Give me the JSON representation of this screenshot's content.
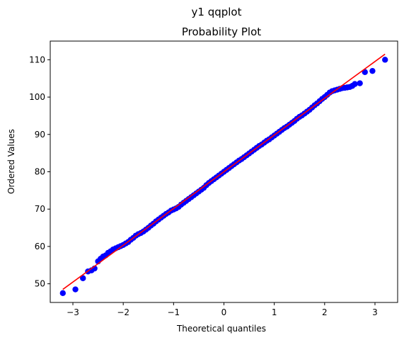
{
  "figure": {
    "suptitle": "y1 qqplot"
  },
  "chart_data": {
    "type": "scatter",
    "title": "Probability Plot",
    "xlabel": "Theoretical quantiles",
    "ylabel": "Ordered Values",
    "xlim": [
      -3.45,
      3.45
    ],
    "ylim": [
      45.0,
      115.0
    ],
    "xticks": [
      -3,
      -2,
      -1,
      0,
      1,
      2,
      3
    ],
    "xtick_labels": [
      "−3",
      "−2",
      "−1",
      "0",
      "1",
      "2",
      "3"
    ],
    "yticks": [
      50,
      60,
      70,
      80,
      90,
      100,
      110
    ],
    "ytick_labels": [
      "50",
      "60",
      "70",
      "80",
      "90",
      "100",
      "110"
    ],
    "grid": false,
    "colors": {
      "points": "#0000ff",
      "fit_line": "#ff0000",
      "axes": "#000000"
    },
    "fit_line": {
      "x": [
        -3.2,
        3.2
      ],
      "y": [
        48.5,
        111.5
      ]
    },
    "series": [
      {
        "points": [
          [
            -3.2,
            47.5
          ],
          [
            -2.95,
            48.5
          ],
          [
            -2.8,
            51.5
          ],
          [
            -2.7,
            53.3
          ],
          [
            -2.63,
            53.6
          ],
          [
            -2.57,
            54.1
          ],
          [
            -2.5,
            56.0
          ],
          [
            -2.45,
            56.7
          ],
          [
            -2.4,
            57.3
          ],
          [
            -2.35,
            57.6
          ],
          [
            -2.3,
            58.3
          ],
          [
            -2.25,
            58.7
          ],
          [
            -2.2,
            59.2
          ],
          [
            -2.15,
            59.5
          ],
          [
            -2.1,
            59.8
          ],
          [
            -2.05,
            60.1
          ],
          [
            -2.0,
            60.4
          ],
          [
            -1.95,
            60.8
          ],
          [
            -1.9,
            61.2
          ],
          [
            -1.85,
            61.8
          ],
          [
            -1.8,
            62.3
          ],
          [
            -1.75,
            62.9
          ],
          [
            -1.7,
            63.3
          ],
          [
            -1.65,
            63.6
          ],
          [
            -1.6,
            64.0
          ],
          [
            -1.55,
            64.5
          ],
          [
            -1.5,
            65.0
          ],
          [
            -1.45,
            65.6
          ],
          [
            -1.4,
            66.1
          ],
          [
            -1.35,
            66.7
          ],
          [
            -1.3,
            67.2
          ],
          [
            -1.25,
            67.7
          ],
          [
            -1.2,
            68.2
          ],
          [
            -1.15,
            68.7
          ],
          [
            -1.1,
            69.1
          ],
          [
            -1.05,
            69.6
          ],
          [
            -1.0,
            69.9
          ],
          [
            -0.95,
            70.2
          ],
          [
            -0.9,
            70.6
          ],
          [
            -0.85,
            71.2
          ],
          [
            -0.8,
            71.7
          ],
          [
            -0.75,
            72.2
          ],
          [
            -0.7,
            72.7
          ],
          [
            -0.65,
            73.2
          ],
          [
            -0.6,
            73.7
          ],
          [
            -0.55,
            74.2
          ],
          [
            -0.5,
            74.7
          ],
          [
            -0.45,
            75.2
          ],
          [
            -0.4,
            75.7
          ],
          [
            -0.35,
            76.4
          ],
          [
            -0.3,
            77.0
          ],
          [
            -0.25,
            77.5
          ],
          [
            -0.2,
            78.0
          ],
          [
            -0.15,
            78.5
          ],
          [
            -0.1,
            79.0
          ],
          [
            -0.05,
            79.5
          ],
          [
            0.0,
            80.0
          ],
          [
            0.05,
            80.5
          ],
          [
            0.1,
            81.0
          ],
          [
            0.15,
            81.5
          ],
          [
            0.2,
            82.0
          ],
          [
            0.25,
            82.5
          ],
          [
            0.3,
            83.0
          ],
          [
            0.35,
            83.4
          ],
          [
            0.4,
            83.9
          ],
          [
            0.45,
            84.4
          ],
          [
            0.5,
            84.9
          ],
          [
            0.55,
            85.4
          ],
          [
            0.6,
            85.9
          ],
          [
            0.65,
            86.4
          ],
          [
            0.7,
            86.9
          ],
          [
            0.75,
            87.3
          ],
          [
            0.8,
            87.8
          ],
          [
            0.85,
            88.3
          ],
          [
            0.9,
            88.7
          ],
          [
            0.95,
            89.2
          ],
          [
            1.0,
            89.7
          ],
          [
            1.05,
            90.2
          ],
          [
            1.1,
            90.7
          ],
          [
            1.15,
            91.2
          ],
          [
            1.2,
            91.7
          ],
          [
            1.25,
            92.1
          ],
          [
            1.3,
            92.6
          ],
          [
            1.35,
            93.1
          ],
          [
            1.4,
            93.6
          ],
          [
            1.45,
            94.2
          ],
          [
            1.5,
            94.7
          ],
          [
            1.55,
            95.1
          ],
          [
            1.6,
            95.6
          ],
          [
            1.65,
            96.1
          ],
          [
            1.7,
            96.6
          ],
          [
            1.75,
            97.2
          ],
          [
            1.8,
            97.8
          ],
          [
            1.85,
            98.3
          ],
          [
            1.9,
            98.9
          ],
          [
            1.95,
            99.5
          ],
          [
            2.0,
            100.0
          ],
          [
            2.05,
            100.6
          ],
          [
            2.1,
            101.2
          ],
          [
            2.15,
            101.6
          ],
          [
            2.2,
            101.8
          ],
          [
            2.25,
            102.0
          ],
          [
            2.3,
            102.2
          ],
          [
            2.35,
            102.4
          ],
          [
            2.4,
            102.5
          ],
          [
            2.45,
            102.6
          ],
          [
            2.5,
            102.7
          ],
          [
            2.55,
            103.0
          ],
          [
            2.6,
            103.5
          ],
          [
            2.7,
            103.7
          ],
          [
            2.8,
            106.7
          ],
          [
            2.95,
            107.0
          ],
          [
            3.2,
            110.0
          ]
        ]
      }
    ]
  }
}
